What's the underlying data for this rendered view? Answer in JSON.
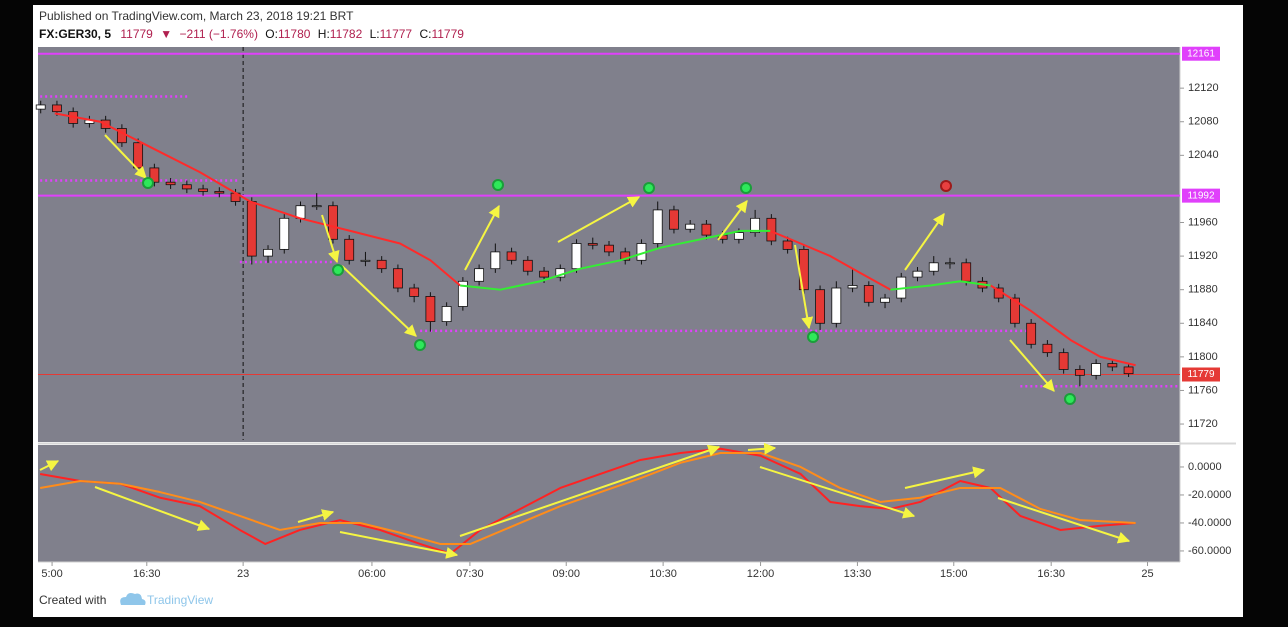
{
  "header": {
    "published": "Published on TradingView.com, March 23, 2018 19:21 BRT",
    "symbol": "FX:GER30, 5",
    "last": "11779",
    "change": "−211 (−1.76%)",
    "ohlc": [
      {
        "label": "O:",
        "value": "11780"
      },
      {
        "label": "H:",
        "value": "11782"
      },
      {
        "label": "L:",
        "value": "11777"
      },
      {
        "label": "C:",
        "value": "11779"
      }
    ]
  },
  "footer": {
    "created": "Created with",
    "brand": "TradingView"
  },
  "chart_data": {
    "type": "candlestick",
    "xlim": [
      0,
      211
    ],
    "xticks": [
      {
        "value": 2.6,
        "label": "5:00"
      },
      {
        "value": 20.1,
        "label": "16:30"
      },
      {
        "value": 37.9,
        "label": "23"
      },
      {
        "value": 61.7,
        "label": "06:00"
      },
      {
        "value": 79.8,
        "label": "07:30"
      },
      {
        "value": 97.6,
        "label": "09:00"
      },
      {
        "value": 115.5,
        "label": "10:30"
      },
      {
        "value": 133.5,
        "label": "12:00"
      },
      {
        "value": 151.4,
        "label": "13:30"
      },
      {
        "value": 169.2,
        "label": "15:00"
      },
      {
        "value": 187.2,
        "label": "16:30"
      },
      {
        "value": 205,
        "label": "25"
      }
    ],
    "day_separator": 37.9,
    "ylim": [
      11701,
      12169
    ],
    "yticks": [
      11720,
      11760,
      11800,
      11840,
      11880,
      11920,
      11960,
      12040,
      12080,
      12120
    ],
    "y2lim": [
      -67.9,
      15.7
    ],
    "y2ticks": [
      {
        "value": 0,
        "label": "0.0000"
      },
      {
        "value": -20,
        "label": "-20.0000"
      },
      {
        "value": -40,
        "label": "-40.0000"
      },
      {
        "value": -60,
        "label": "-60.0000"
      }
    ],
    "up_color": "#ffffff",
    "down_color": "#e53935",
    "x": [
      0.5,
      3.5,
      6.5,
      9.5,
      12.5,
      15.5,
      18.5,
      21.5,
      24.5,
      27.5,
      30.5,
      33.5,
      36.5,
      39.5,
      42.5,
      45.5,
      48.5,
      51.5,
      54.5,
      57.5,
      60.5,
      63.5,
      66.5,
      69.5,
      72.5,
      75.5,
      78.5,
      81.5,
      84.5,
      87.5,
      90.5,
      93.5,
      96.5,
      99.5,
      102.5,
      105.5,
      108.5,
      111.5,
      114.5,
      117.5,
      120.5,
      123.5,
      126.5,
      129.5,
      132.5,
      135.5,
      138.5,
      141.5,
      144.5,
      147.5,
      150.5,
      153.5,
      156.5,
      159.5,
      162.5,
      165.5,
      168.5,
      171.5,
      174.5,
      177.5,
      180.5,
      183.5,
      186.5,
      189.5,
      192.5,
      195.5,
      198.5,
      201.5
    ],
    "open": [
      12095,
      12100,
      12092,
      12078,
      12082,
      12072,
      12055,
      12025,
      12008,
      12005,
      12000,
      11997,
      11995,
      11985,
      11920,
      11928,
      11965,
      11980,
      11980,
      11940,
      11915,
      11915,
      11905,
      11882,
      11872,
      11842,
      11860,
      11890,
      11905,
      11925,
      11915,
      11902,
      11895,
      11905,
      11935,
      11933,
      11925,
      11915,
      11935,
      11975,
      11952,
      11958,
      11945,
      11940,
      11948,
      11965,
      11938,
      11928,
      11880,
      11840,
      11882,
      11885,
      11865,
      11870,
      11895,
      11902,
      11912,
      11912,
      11890,
      11882,
      11870,
      11840,
      11815,
      11805,
      11785,
      11778,
      11792,
      11788
    ],
    "high": [
      12105,
      12105,
      12097,
      12087,
      12087,
      12077,
      12060,
      12030,
      12013,
      12010,
      12005,
      12002,
      12000,
      11990,
      11933,
      11970,
      11985,
      11995,
      11985,
      11945,
      11925,
      11920,
      11910,
      11887,
      11877,
      11865,
      11895,
      11910,
      11935,
      11930,
      11920,
      11907,
      11910,
      11940,
      11942,
      11938,
      11930,
      11940,
      11985,
      11980,
      11963,
      11963,
      11950,
      11953,
      11975,
      11970,
      11943,
      11933,
      11885,
      11890,
      11905,
      11890,
      11875,
      11900,
      11907,
      11920,
      11918,
      11917,
      11895,
      11887,
      11875,
      11845,
      11820,
      11810,
      11790,
      11797,
      11797,
      11792
    ],
    "low": [
      12090,
      12087,
      12073,
      12073,
      12067,
      12050,
      12020,
      12003,
      12000,
      11995,
      11992,
      11990,
      11980,
      11910,
      11912,
      11923,
      11960,
      11975,
      11935,
      11910,
      11908,
      11900,
      11877,
      11865,
      11830,
      11837,
      11855,
      11885,
      11900,
      11910,
      11897,
      11888,
      11890,
      11900,
      11928,
      11920,
      11910,
      11910,
      11930,
      11947,
      11948,
      11940,
      11935,
      11935,
      11943,
      11933,
      11923,
      11875,
      11832,
      11835,
      11877,
      11860,
      11858,
      11865,
      11890,
      11897,
      11905,
      11885,
      11877,
      11865,
      11835,
      11810,
      11800,
      11780,
      11765,
      11773,
      11783,
      11776
    ],
    "close": [
      12100,
      12092,
      12078,
      12082,
      12072,
      12055,
      12025,
      12008,
      12005,
      12000,
      11997,
      11995,
      11985,
      11920,
      11928,
      11965,
      11980,
      11980,
      11940,
      11915,
      11915,
      11905,
      11882,
      11872,
      11842,
      11860,
      11890,
      11905,
      11925,
      11915,
      11902,
      11895,
      11905,
      11935,
      11933,
      11925,
      11915,
      11935,
      11975,
      11952,
      11958,
      11945,
      11940,
      11948,
      11965,
      11938,
      11928,
      11880,
      11840,
      11882,
      11885,
      11865,
      11870,
      11895,
      11902,
      11912,
      11912,
      11890,
      11882,
      11870,
      11840,
      11815,
      11805,
      11785,
      11778,
      11792,
      11788,
      11780
    ],
    "moving_average": [
      {
        "color": "#ff2a2a",
        "x": [
          3.1,
          11.5,
          20.7,
          29.9,
          39.2,
          48.4,
          57.7,
          66.9,
          72.5,
          78.0,
          85.4,
          92.8,
          100.2,
          107.6,
          115.0,
          122.4,
          129.8,
          135.3,
          140.9,
          146.4,
          151.9,
          157.5,
          164.9,
          170.4,
          176.0,
          183.4,
          190.8,
          196.3,
          202.8
        ],
        "values": [
          12090,
          12080,
          12050,
          12020,
          11985,
          11965,
          11950,
          11935,
          11915,
          11885,
          null,
          null,
          null,
          null,
          null,
          null,
          null,
          11950,
          11935,
          11920,
          11900,
          11880,
          null,
          null,
          11885,
          11855,
          11820,
          11800,
          11790
        ]
      },
      {
        "color": "#33ee33",
        "x": [
          3.1,
          11.5,
          20.7,
          29.9,
          39.2,
          48.4,
          57.7,
          66.9,
          72.5,
          78.0,
          85.4,
          92.8,
          100.2,
          107.6,
          115.0,
          122.4,
          129.8,
          135.3,
          140.9,
          146.4,
          151.9,
          157.5,
          164.9,
          170.4,
          176.0,
          183.4,
          190.8,
          196.3,
          202.8
        ],
        "values": [
          null,
          null,
          null,
          null,
          null,
          null,
          null,
          null,
          null,
          11885,
          11880,
          11890,
          11905,
          11915,
          11930,
          11940,
          11950,
          11950,
          null,
          null,
          null,
          11880,
          11885,
          11890,
          11885,
          null,
          null,
          null,
          null
        ]
      }
    ],
    "oscillator": [
      {
        "color": "#ff2222",
        "axis": "y2",
        "x": [
          0.4,
          7.8,
          15.2,
          22.6,
          29.9,
          37.3,
          42.0,
          48.4,
          55.8,
          63.2,
          70.6,
          76.2,
          81.7,
          89.1,
          96.5,
          103.9,
          111.3,
          118.7,
          126.1,
          133.5,
          140.9,
          146.4,
          151.9,
          157.5,
          163.0,
          170.4,
          176.0,
          181.5,
          188.9,
          196.3,
          202.8
        ],
        "values": [
          -5,
          -10,
          -12,
          -22,
          -28,
          -45,
          -55,
          -45,
          -38,
          -45,
          -55,
          -62,
          -45,
          -30,
          -15,
          -5,
          5,
          10,
          13,
          8,
          -5,
          -25,
          -28,
          -30,
          -25,
          -10,
          -15,
          -35,
          -45,
          -42,
          -40
        ]
      },
      {
        "color": "#ff8c1a",
        "axis": "y2",
        "x": [
          0.4,
          7.8,
          15.2,
          22.6,
          29.9,
          37.3,
          44.7,
          52.1,
          59.5,
          66.9,
          74.3,
          79.9,
          89.1,
          96.5,
          103.9,
          111.3,
          118.7,
          126.1,
          133.5,
          140.9,
          148.2,
          155.6,
          163.0,
          170.4,
          177.8,
          185.2,
          192.6,
          202.8
        ],
        "values": [
          -15,
          -10,
          -12,
          -18,
          -25,
          -35,
          -45,
          -40,
          -40,
          -47,
          -55,
          -55,
          -40,
          -28,
          -18,
          -8,
          3,
          10,
          10,
          0,
          -15,
          -25,
          -22,
          -15,
          -15,
          -30,
          -38,
          -40
        ]
      }
    ],
    "levels": [
      {
        "value": 12161,
        "color": "#e040fb",
        "style": "solid",
        "label": true
      },
      {
        "value": 11992,
        "color": "#e040fb",
        "style": "solid",
        "label": true
      },
      {
        "value": 11779,
        "color": "#e53935",
        "style": "thin",
        "label": true
      },
      {
        "value": 12110,
        "color": "#e040fb",
        "style": "dotted",
        "xrange": [
          0.4,
          28.1
        ]
      },
      {
        "value": 12010,
        "color": "#e040fb",
        "style": "dotted",
        "xrange": [
          0.4,
          37.3
        ]
      },
      {
        "value": 11913,
        "color": "#e040fb",
        "style": "dotted",
        "xrange": [
          37.3,
          54.9
        ]
      },
      {
        "value": 11831,
        "color": "#e040fb",
        "style": "dotted",
        "xrange": [
          70.6,
          183.4
        ]
      },
      {
        "value": 11765,
        "color": "#e040fb",
        "style": "dotted",
        "xrange": [
          181.5,
          211
        ]
      }
    ]
  }
}
